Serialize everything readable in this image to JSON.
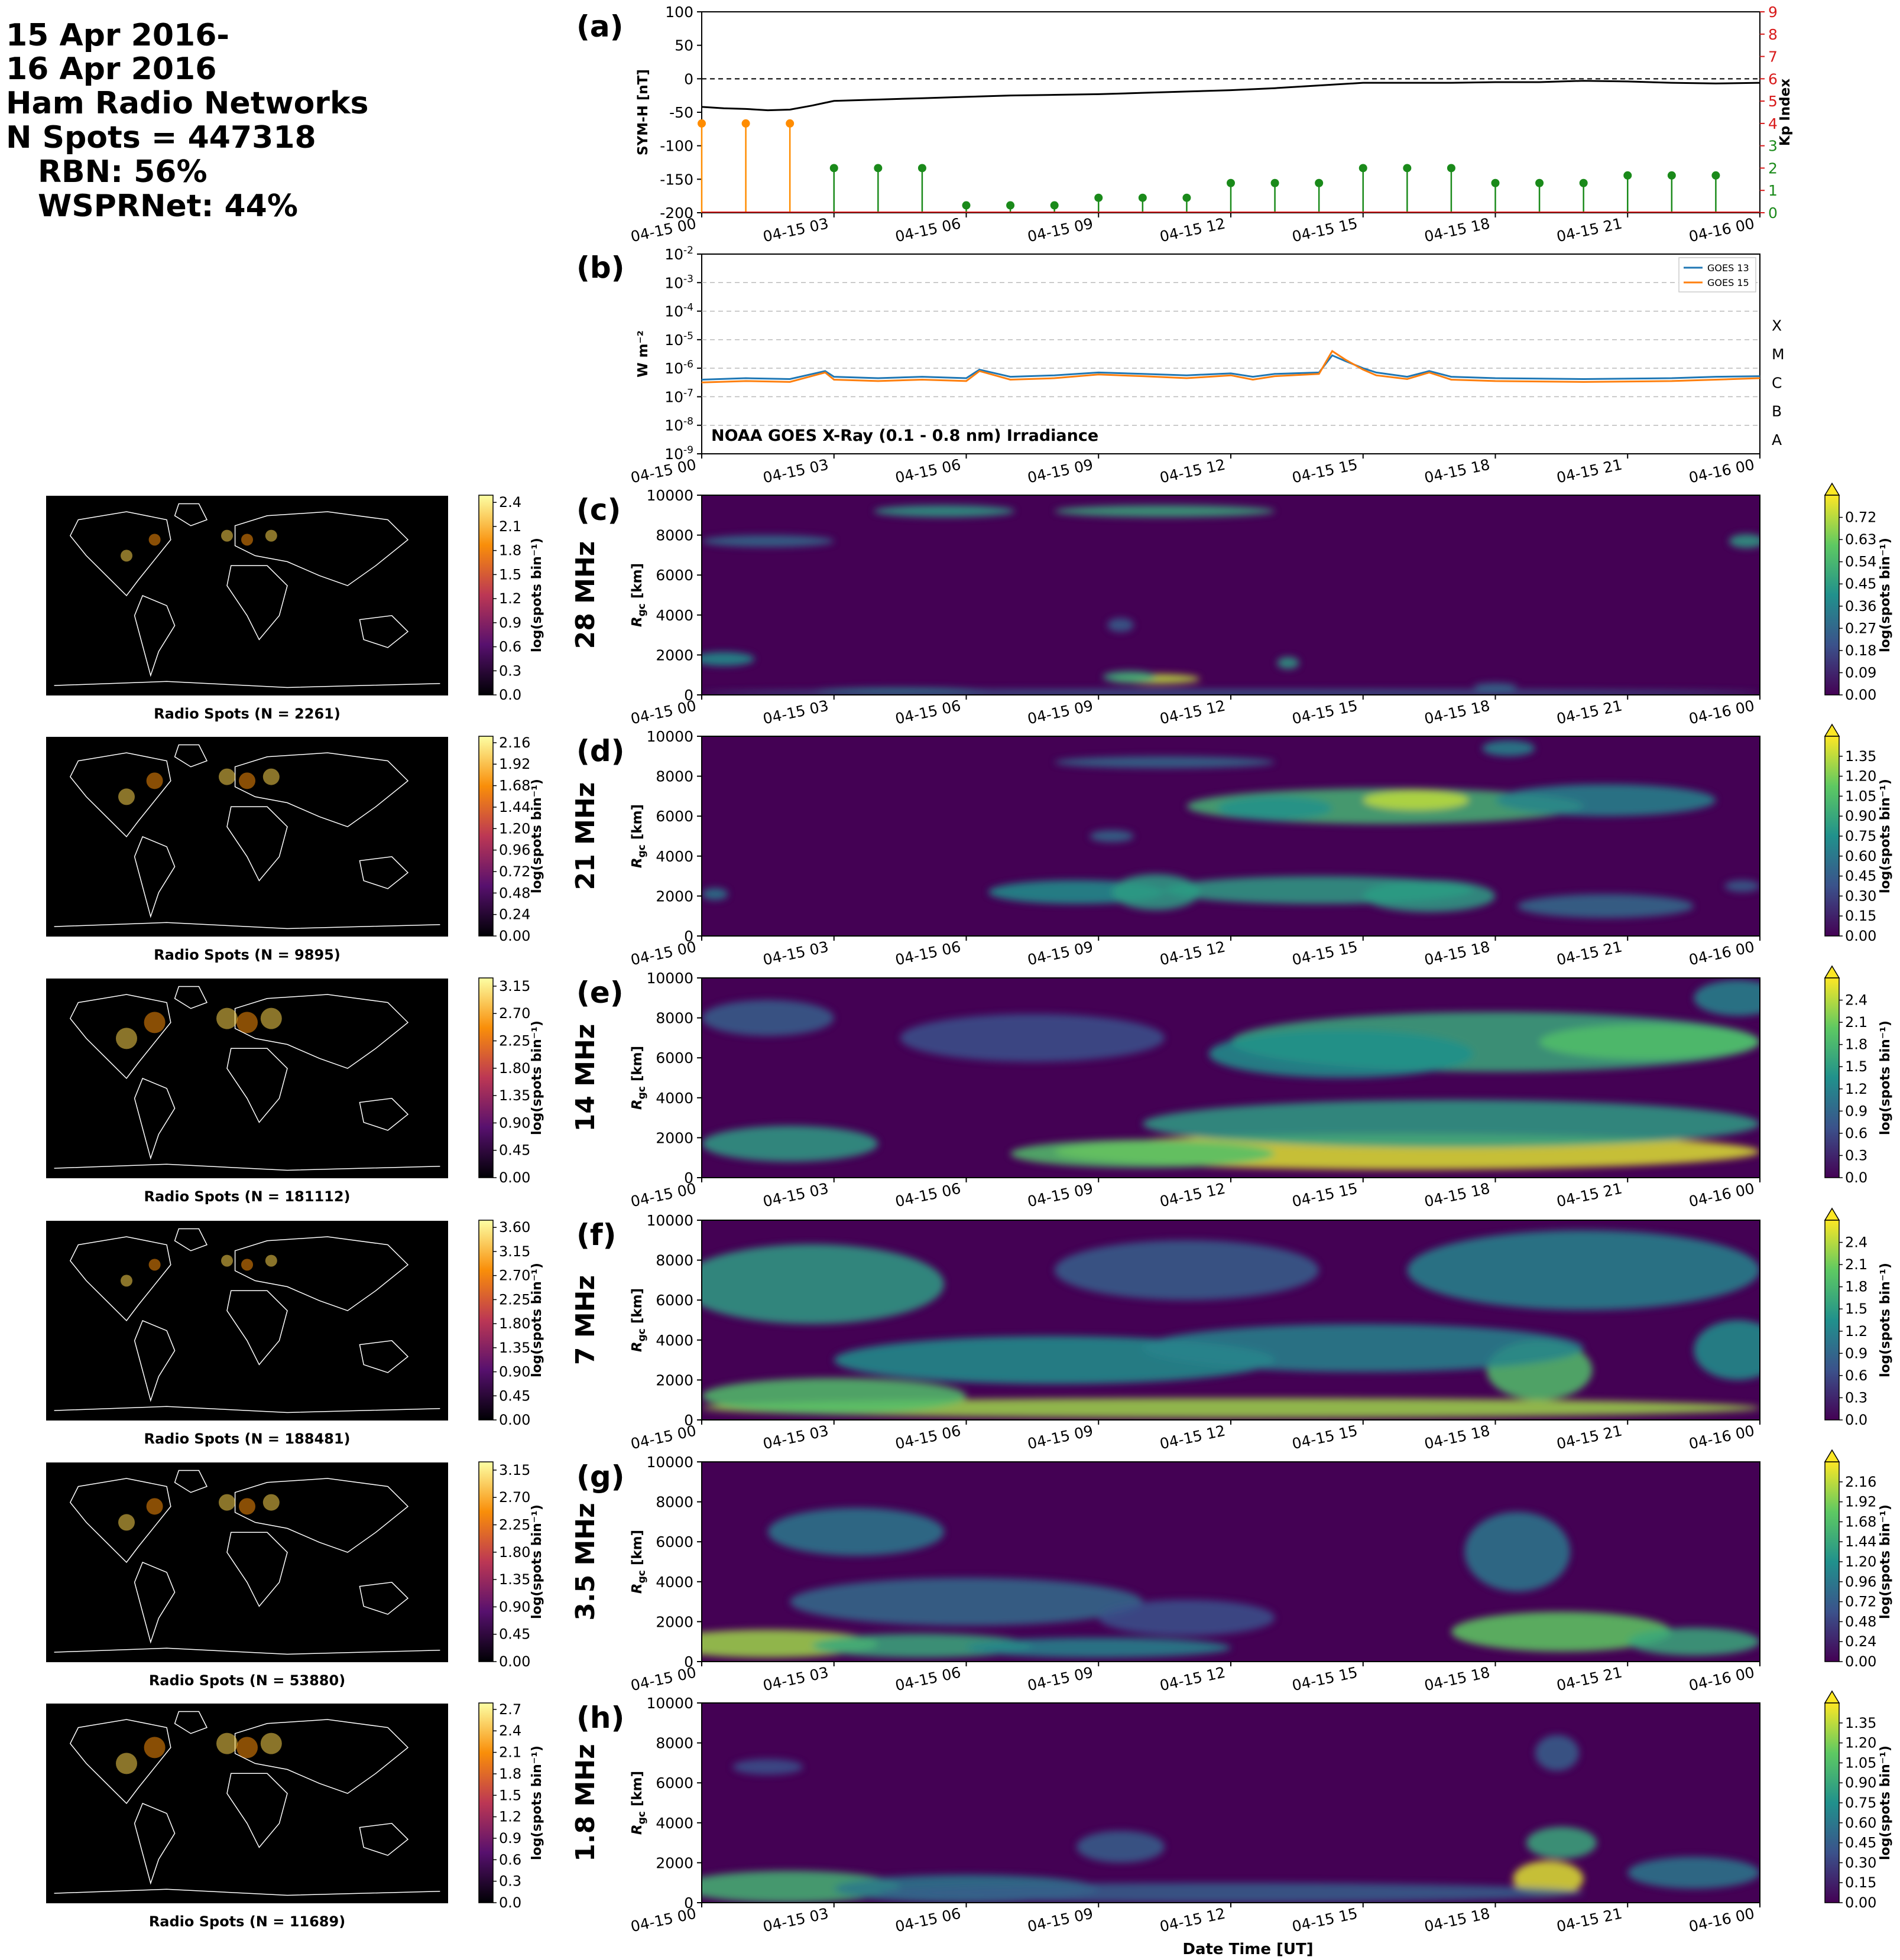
{
  "header": {
    "lines": [
      "15 Apr 2016-",
      "16 Apr 2016",
      "Ham Radio Networks",
      "N Spots = 447318",
      "RBN: 56%",
      "WSPRNet: 44%"
    ]
  },
  "time_ticks": [
    "04-15 00",
    "04-15 03",
    "04-15 06",
    "04-15 09",
    "04-15 12",
    "04-15 15",
    "04-15 18",
    "04-15 21",
    "04-16 00"
  ],
  "xlabel": "Date Time [UT]",
  "colors": {
    "symh": "#000000",
    "kp_low": "#1a8a1a",
    "kp_storm": "#ff8c00",
    "goes13": "#1f77b4",
    "goes15": "#ff7f0e",
    "kp_axis": "#d81b1b",
    "map_bg": "#000000",
    "coast": "#ffffff"
  },
  "chart_data": [
    {
      "id": "a",
      "type": "line",
      "label": "(a)",
      "ylabel": "SYM-H [nT]",
      "ylim": [
        -200,
        100
      ],
      "yticks": [
        100,
        50,
        0,
        -50,
        -100,
        -150,
        -200
      ],
      "y2label": "Kp Index",
      "y2lim": [
        0,
        9
      ],
      "y2ticks": [
        0,
        1,
        2,
        3,
        4,
        5,
        6,
        7,
        8,
        9
      ],
      "xlim_hours": [
        0,
        24
      ],
      "series": [
        {
          "name": "SYM-H",
          "x_hours": [
            0,
            0.5,
            1,
            1.5,
            2,
            2.5,
            3,
            4,
            5,
            6,
            7,
            8,
            9,
            10,
            11,
            12,
            13,
            14,
            15,
            16,
            17,
            18,
            19,
            20,
            21,
            22,
            23,
            24
          ],
          "y": [
            -42,
            -44,
            -45,
            -47,
            -46,
            -40,
            -33,
            -31,
            -29,
            -27,
            -25,
            -24,
            -23,
            -21,
            -19,
            -17,
            -14,
            -10,
            -6,
            -6,
            -6,
            -5,
            -5,
            -3,
            -4,
            -6,
            -7,
            -6
          ]
        }
      ],
      "kp": {
        "x_hours": [
          0,
          1,
          2,
          3,
          4,
          5,
          6,
          7,
          8,
          9,
          10,
          11,
          12,
          13,
          14,
          15,
          16,
          17,
          18,
          19,
          20,
          21,
          22,
          23
        ],
        "values": [
          4,
          4,
          4,
          2,
          2,
          2,
          0.33,
          0.33,
          0.33,
          0.67,
          0.67,
          0.67,
          1.33,
          1.33,
          1.33,
          2,
          2,
          2,
          1.33,
          1.33,
          1.33,
          1.67,
          1.67,
          1.67
        ]
      }
    },
    {
      "id": "b",
      "type": "line",
      "label": "(b)",
      "ylabel": "W m⁻²",
      "scale": "log",
      "ylim_exp": [
        -9,
        -2
      ],
      "ytick_exps": [
        -9,
        -8,
        -7,
        -6,
        -5,
        -4,
        -3,
        -2
      ],
      "flare_classes": [
        {
          "name": "A",
          "exp": -8
        },
        {
          "name": "B",
          "exp": -7
        },
        {
          "name": "C",
          "exp": -6
        },
        {
          "name": "M",
          "exp": -5
        },
        {
          "name": "X",
          "exp": -4
        }
      ],
      "annotation": "NOAA GOES X-Ray (0.1 - 0.8 nm) Irradiance",
      "series": [
        {
          "name": "GOES 13",
          "x_hours": [
            0,
            1,
            2,
            2.8,
            3,
            4,
            5,
            6,
            6.3,
            7,
            8,
            9,
            10,
            11,
            12,
            12.5,
            13,
            14,
            14.3,
            14.6,
            15,
            15.3,
            16,
            16.5,
            17,
            18,
            20,
            22,
            23,
            24
          ],
          "log10": [
            -6.4,
            -6.35,
            -6.38,
            -6.1,
            -6.3,
            -6.35,
            -6.3,
            -6.35,
            -6.05,
            -6.3,
            -6.25,
            -6.15,
            -6.2,
            -6.25,
            -6.18,
            -6.3,
            -6.2,
            -6.15,
            -5.55,
            -5.75,
            -6.0,
            -6.15,
            -6.3,
            -6.1,
            -6.3,
            -6.35,
            -6.38,
            -6.35,
            -6.3,
            -6.28
          ]
        },
        {
          "name": "GOES 15",
          "x_hours": [
            0,
            1,
            2,
            2.8,
            3,
            4,
            5,
            6,
            6.3,
            7,
            8,
            9,
            10,
            11,
            12,
            12.5,
            13,
            14,
            14.3,
            14.6,
            15,
            15.3,
            16,
            16.5,
            17,
            18,
            20,
            22,
            23,
            24
          ],
          "log10": [
            -6.5,
            -6.45,
            -6.48,
            -6.15,
            -6.4,
            -6.45,
            -6.4,
            -6.45,
            -6.1,
            -6.4,
            -6.35,
            -6.22,
            -6.28,
            -6.35,
            -6.25,
            -6.4,
            -6.28,
            -6.2,
            -5.4,
            -5.7,
            -6.05,
            -6.25,
            -6.38,
            -6.15,
            -6.4,
            -6.45,
            -6.48,
            -6.45,
            -6.4,
            -6.35
          ]
        }
      ]
    },
    {
      "id": "c",
      "type": "heatmap",
      "label": "(c)",
      "band": "28 MHz",
      "ylabel": "Rgc [km]",
      "ylim": [
        0,
        10000
      ],
      "cbar_label": "log(spots bin⁻¹)",
      "cbar_ticks": [
        "0.00",
        "0.09",
        "0.18",
        "0.27",
        "0.36",
        "0.45",
        "0.54",
        "0.63",
        "0.72"
      ],
      "map_spots": "Radio Spots (N = 2261)",
      "map_cbar_ticks": [
        "0.0",
        "0.3",
        "0.6",
        "0.9",
        "1.2",
        "1.5",
        "1.8",
        "2.1",
        "2.4"
      ],
      "blobs": [
        [
          0.5,
          1800,
          0.7,
          350,
          0.5
        ],
        [
          1.5,
          7700,
          1.5,
          300,
          0.35
        ],
        [
          5.5,
          9200,
          1.6,
          300,
          0.55
        ],
        [
          10.5,
          9200,
          2.5,
          300,
          0.6
        ],
        [
          10.3,
          800,
          1.0,
          250,
          0.9
        ],
        [
          9.7,
          900,
          0.6,
          300,
          0.6
        ],
        [
          4.5,
          150,
          2.0,
          200,
          0.5
        ],
        [
          13.3,
          1600,
          0.25,
          300,
          0.55
        ],
        [
          18,
          400,
          0.5,
          200,
          0.35
        ],
        [
          23.7,
          7700,
          0.4,
          350,
          0.55
        ],
        [
          12,
          100,
          12,
          120,
          0.3
        ],
        [
          9.5,
          3500,
          0.3,
          350,
          0.3
        ]
      ]
    },
    {
      "id": "d",
      "type": "heatmap",
      "label": "(d)",
      "band": "21 MHz",
      "ylabel": "Rgc [km]",
      "ylim": [
        0,
        10000
      ],
      "cbar_label": "log(spots bin⁻¹)",
      "cbar_ticks": [
        "0.00",
        "0.15",
        "0.30",
        "0.45",
        "0.60",
        "0.75",
        "0.90",
        "1.05",
        "1.20",
        "1.35"
      ],
      "map_spots": "Radio Spots (N = 9895)",
      "map_cbar_ticks": [
        "0.00",
        "0.24",
        "0.48",
        "0.72",
        "0.96",
        "1.20",
        "1.44",
        "1.68",
        "1.92",
        "2.16"
      ],
      "blobs": [
        [
          15.5,
          6500,
          4.5,
          900,
          0.65
        ],
        [
          16.2,
          6800,
          1.2,
          500,
          0.9
        ],
        [
          20.5,
          6800,
          2.5,
          800,
          0.45
        ],
        [
          13,
          6400,
          1.3,
          600,
          0.5
        ],
        [
          8.5,
          2200,
          2.0,
          600,
          0.5
        ],
        [
          10.3,
          2200,
          1.0,
          900,
          0.55
        ],
        [
          14,
          2300,
          3.5,
          700,
          0.55
        ],
        [
          16.5,
          2000,
          1.5,
          800,
          0.55
        ],
        [
          10.5,
          8700,
          2.5,
          300,
          0.35
        ],
        [
          0.3,
          2100,
          0.3,
          300,
          0.4
        ],
        [
          18.3,
          9400,
          0.6,
          400,
          0.45
        ],
        [
          20.5,
          1500,
          2.0,
          600,
          0.35
        ],
        [
          23.6,
          2500,
          0.4,
          300,
          0.3
        ],
        [
          9.3,
          5000,
          0.5,
          300,
          0.35
        ]
      ]
    },
    {
      "id": "e",
      "type": "heatmap",
      "label": "(e)",
      "band": "14 MHz",
      "ylabel": "Rgc [km]",
      "ylim": [
        0,
        10000
      ],
      "cbar_label": "log(spots bin⁻¹)",
      "cbar_ticks": [
        "0.0",
        "0.3",
        "0.6",
        "0.9",
        "1.2",
        "1.5",
        "1.8",
        "2.1",
        "2.4"
      ],
      "map_spots": "Radio Spots (N = 181112)",
      "map_cbar_ticks": [
        "0.00",
        "0.45",
        "0.90",
        "1.35",
        "1.80",
        "2.25",
        "2.70",
        "3.15"
      ],
      "blobs": [
        [
          16,
          1300,
          8,
          900,
          0.95
        ],
        [
          10,
          1200,
          3,
          700,
          0.7
        ],
        [
          2,
          1700,
          2,
          900,
          0.55
        ],
        [
          17,
          2700,
          7,
          1200,
          0.55
        ],
        [
          18,
          6800,
          6,
          1500,
          0.6
        ],
        [
          21.5,
          6800,
          2.5,
          900,
          0.7
        ],
        [
          14.5,
          6200,
          3,
          1200,
          0.5
        ],
        [
          1.5,
          8000,
          1.5,
          900,
          0.3
        ],
        [
          7.5,
          7000,
          3,
          1200,
          0.25
        ],
        [
          23.5,
          9000,
          1,
          900,
          0.45
        ]
      ]
    },
    {
      "id": "f",
      "type": "heatmap",
      "label": "(f)",
      "band": "7 MHz",
      "ylabel": "Rgc [km]",
      "ylim": [
        0,
        10000
      ],
      "cbar_label": "log(spots bin⁻¹)",
      "cbar_ticks": [
        "0.0",
        "0.3",
        "0.6",
        "0.9",
        "1.2",
        "1.5",
        "1.8",
        "2.1",
        "2.4"
      ],
      "map_spots": "Radio Spots (N = 188481)",
      "map_cbar_ticks": [
        "0.00",
        "0.45",
        "0.90",
        "1.35",
        "1.80",
        "2.25",
        "2.70",
        "3.15",
        "3.60"
      ],
      "blobs": [
        [
          12,
          600,
          12,
          500,
          0.85
        ],
        [
          3,
          1200,
          3,
          900,
          0.7
        ],
        [
          19,
          2500,
          1.2,
          1500,
          0.7
        ],
        [
          2.5,
          6800,
          3,
          2000,
          0.55
        ],
        [
          8,
          3000,
          5,
          1200,
          0.5
        ],
        [
          15,
          3600,
          5,
          1200,
          0.45
        ],
        [
          20,
          7500,
          4,
          2000,
          0.45
        ],
        [
          11,
          7500,
          3,
          1500,
          0.3
        ],
        [
          23.5,
          3500,
          1,
          1500,
          0.5
        ]
      ]
    },
    {
      "id": "g",
      "type": "heatmap",
      "label": "(g)",
      "band": "3.5 MHz",
      "ylabel": "Rgc [km]",
      "ylim": [
        0,
        10000
      ],
      "cbar_label": "log(spots bin⁻¹)",
      "cbar_ticks": [
        "0.00",
        "0.24",
        "0.48",
        "0.72",
        "0.96",
        "1.20",
        "1.44",
        "1.68",
        "1.92",
        "2.16"
      ],
      "map_spots": "Radio Spots (N = 53880)",
      "map_cbar_ticks": [
        "0.00",
        "0.45",
        "0.90",
        "1.35",
        "1.80",
        "2.25",
        "2.70",
        "3.15"
      ],
      "blobs": [
        [
          1.5,
          900,
          2.5,
          700,
          0.85
        ],
        [
          5,
          800,
          2.5,
          600,
          0.6
        ],
        [
          9,
          700,
          3,
          500,
          0.45
        ],
        [
          19.5,
          1500,
          2.5,
          1000,
          0.75
        ],
        [
          22.5,
          1000,
          1.5,
          700,
          0.6
        ],
        [
          3.5,
          6500,
          2,
          1200,
          0.4
        ],
        [
          6,
          3000,
          4,
          1200,
          0.35
        ],
        [
          18.5,
          5500,
          1.2,
          2000,
          0.4
        ],
        [
          11,
          2200,
          2,
          900,
          0.25
        ]
      ]
    },
    {
      "id": "h",
      "type": "heatmap",
      "label": "(h)",
      "band": "1.8 MHz",
      "ylabel": "Rgc [km]",
      "ylim": [
        0,
        10000
      ],
      "cbar_label": "log(spots bin⁻¹)",
      "cbar_ticks": [
        "0.00",
        "0.15",
        "0.30",
        "0.45",
        "0.60",
        "0.75",
        "0.90",
        "1.05",
        "1.20",
        "1.35"
      ],
      "map_spots": "Radio Spots (N = 11689)",
      "map_cbar_ticks": [
        "0.0",
        "0.3",
        "0.6",
        "0.9",
        "1.2",
        "1.5",
        "1.8",
        "2.1",
        "2.4",
        "2.7"
      ],
      "blobs": [
        [
          2,
          800,
          2.5,
          800,
          0.65
        ],
        [
          6,
          700,
          3,
          700,
          0.4
        ],
        [
          19.2,
          1200,
          0.8,
          900,
          0.95
        ],
        [
          19.5,
          3000,
          0.8,
          800,
          0.6
        ],
        [
          12,
          500,
          8,
          500,
          0.3
        ],
        [
          22.5,
          1500,
          1.5,
          800,
          0.4
        ],
        [
          9.5,
          2800,
          1,
          800,
          0.3
        ],
        [
          1.5,
          6800,
          0.8,
          400,
          0.25
        ],
        [
          19.4,
          7500,
          0.5,
          900,
          0.3
        ]
      ]
    }
  ]
}
